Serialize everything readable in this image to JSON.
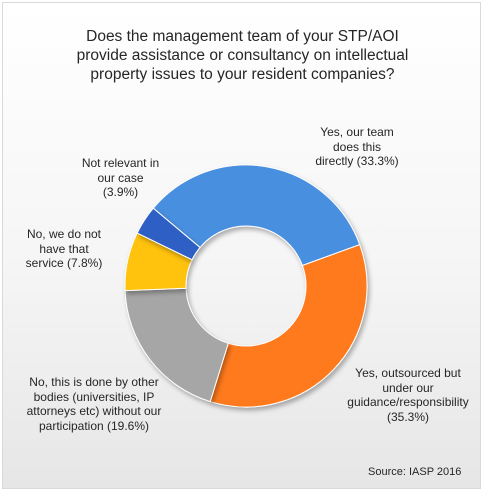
{
  "chart_data": {
    "type": "pie",
    "style": "donut",
    "title": "Does the management team of your STP/AOI\nprovide assistance or consultancy  on intellectual\nproperty issues to your resident companies?",
    "slices": [
      {
        "label": "Yes, our team\ndoes this\ndirectly  (33.3%)",
        "value": 33.3,
        "color": "#4a8fe0"
      },
      {
        "label": "Yes, outsourced but\nunder our\nguidance/responsibility\n(35.3%)",
        "value": 35.3,
        "color": "#ff7a1f"
      },
      {
        "label": "No, this is done  by other\nbodies (universities,  IP\nattorneys etc) without our\nparticipation  (19.6%)",
        "value": 19.6,
        "color": "#a6a6a6"
      },
      {
        "label": "No, we do not\nhave  that\nservice  (7.8%)",
        "value": 7.8,
        "color": "#ffc20e"
      },
      {
        "label": "Not relevant  in\nour case\n(3.9%)",
        "value": 3.9,
        "color": "#2e5fc4"
      }
    ],
    "start_angle_deg": -50,
    "source_label": "Source:",
    "source_value": "IASP 2016"
  }
}
